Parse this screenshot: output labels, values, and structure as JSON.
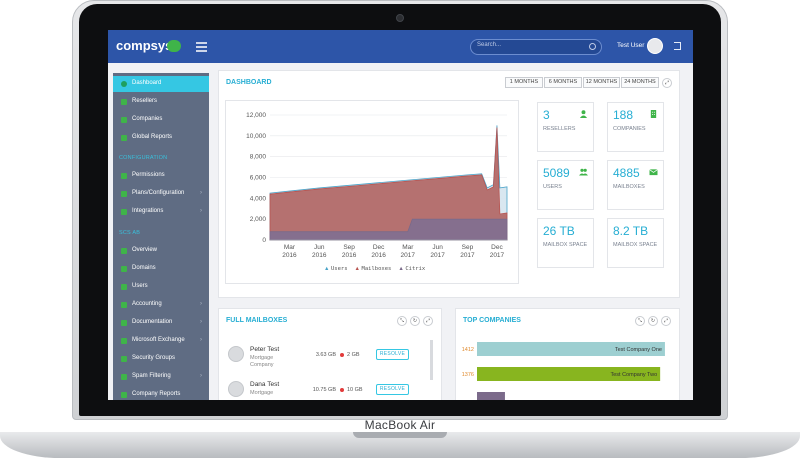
{
  "device": {
    "brand": "MacBook Air"
  },
  "app": {
    "logo": "compsys",
    "search": {
      "placeholder": "Search..."
    },
    "user": {
      "name": "Test User"
    }
  },
  "sidebar": {
    "top_items": [
      {
        "label": "Dashboard",
        "active": true
      },
      {
        "label": "Resellers"
      },
      {
        "label": "Companies"
      },
      {
        "label": "Global Reports"
      }
    ],
    "section_configuration": "CONFIGURATION",
    "config_items": [
      {
        "label": "Permissions"
      },
      {
        "label": "Plans/Configuration"
      },
      {
        "label": "Integrations"
      }
    ],
    "section_scs": "SCS AB",
    "scs_items": [
      {
        "label": "Overview"
      },
      {
        "label": "Domains"
      },
      {
        "label": "Users"
      },
      {
        "label": "Accounting"
      },
      {
        "label": "Documentation"
      },
      {
        "label": "Microsoft Exchange"
      },
      {
        "label": "Security Groups"
      },
      {
        "label": "Spam Filtering"
      },
      {
        "label": "Company Reports"
      }
    ]
  },
  "dashboard": {
    "title": "DASHBOARD",
    "ranges": [
      "1 MONTHS",
      "6 MONTHS",
      "12 MONTHS",
      "24 MONTHS"
    ],
    "stats": [
      {
        "value": "3",
        "label": "RESELLERS",
        "icon": "user-icon"
      },
      {
        "value": "188",
        "label": "COMPANIES",
        "icon": "building-icon"
      },
      {
        "value": "5089",
        "label": "USERS",
        "icon": "users-icon"
      },
      {
        "value": "4885",
        "label": "MAILBOXES",
        "icon": "envelope-icon"
      },
      {
        "value": "26 TB",
        "label": "MAILBOX SPACE",
        "icon": ""
      },
      {
        "value": "8.2 TB",
        "label": "MAILBOX SPACE",
        "icon": ""
      }
    ]
  },
  "chart_data": {
    "type": "area",
    "title": "",
    "xlabel": "",
    "ylabel": "",
    "ylim": [
      0,
      12000
    ],
    "yticks": [
      "0",
      "2,000",
      "4,000",
      "6,000",
      "8,000",
      "10,000",
      "12,000"
    ],
    "xticks": [
      "Mar 2016",
      "Jun 2016",
      "Sep 2016",
      "Dec 2016",
      "Mar 2017",
      "Jun 2017",
      "Sep 2017",
      "Dec 2017"
    ],
    "grid": true,
    "legend_position": "bottom",
    "series": [
      {
        "name": "Users",
        "color": "#4aa3c8",
        "x": [
          "2016-01-01",
          "2016-03-01",
          "2016-06-01",
          "2016-09-01",
          "2016-12-01",
          "2017-03-01",
          "2017-06-01",
          "2017-09-01",
          "2017-10-15",
          "2017-11-01",
          "2017-11-20",
          "2017-12-01",
          "2017-12-10",
          "2018-01-01"
        ],
        "values": [
          4500,
          4700,
          5000,
          5250,
          5500,
          5750,
          6000,
          6250,
          6350,
          5000,
          5300,
          11000,
          5000,
          5100
        ]
      },
      {
        "name": "Mailboxes",
        "color": "#b85450",
        "x": [
          "2016-01-01",
          "2016-03-01",
          "2016-06-01",
          "2016-09-01",
          "2016-12-01",
          "2017-03-01",
          "2017-06-01",
          "2017-09-01",
          "2017-10-15",
          "2017-11-01",
          "2017-11-20",
          "2017-12-01",
          "2017-12-10",
          "2018-01-01"
        ],
        "values": [
          4400,
          4600,
          4900,
          5150,
          5400,
          5650,
          5900,
          6150,
          6250,
          4800,
          5100,
          10800,
          2500,
          2600
        ]
      },
      {
        "name": "Citrix",
        "color": "#7a6a8a",
        "x": [
          "2016-01-01",
          "2016-03-01",
          "2016-06-01",
          "2016-09-01",
          "2016-12-01",
          "2017-03-01",
          "2017-03-15",
          "2017-06-01",
          "2017-09-01",
          "2017-12-01",
          "2018-01-01"
        ],
        "values": [
          800,
          800,
          800,
          800,
          800,
          800,
          2000,
          2000,
          2000,
          2000,
          2000
        ]
      }
    ]
  },
  "full_mailboxes": {
    "title": "FULL MAILBOXES",
    "rows": [
      {
        "name": "Peter Test",
        "company": "Mortgage Company",
        "used": "3.63 GB",
        "quota": "2 GB",
        "action": "RESOLVE"
      },
      {
        "name": "Dana Test",
        "company": "Mortgage",
        "used": "10.75 GB",
        "quota": "10 GB",
        "action": "RESOLVE"
      }
    ]
  },
  "top_companies": {
    "title": "TOP COMPANIES",
    "chart": {
      "type": "bar",
      "categories": [
        "Test Company One",
        "Test Company Two",
        ""
      ],
      "values": [
        1412,
        1376,
        210
      ],
      "colors": [
        "#9dcfd1",
        "#88b51f",
        "#7b6a8a"
      ]
    }
  },
  "colors": {
    "topbar": "#2d55a8",
    "accent": "#27aed3",
    "sidebar": "#5f6c83",
    "active": "#35c7e3"
  }
}
